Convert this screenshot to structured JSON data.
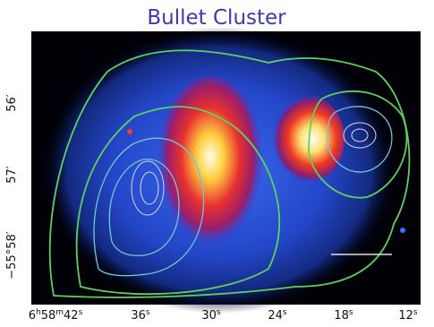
{
  "title": "Bullet Cluster",
  "x_axis": {
    "labels": [
      [
        "6",
        "h",
        "58",
        "m",
        "42",
        "s"
      ],
      [
        "36",
        "s"
      ],
      [
        "30",
        "s"
      ],
      [
        "24",
        "s"
      ],
      [
        "18",
        "s"
      ],
      [
        "12",
        "s"
      ]
    ]
  },
  "y_axis": {
    "labels": [
      "56′",
      "57′",
      "−55°58′"
    ]
  }
}
